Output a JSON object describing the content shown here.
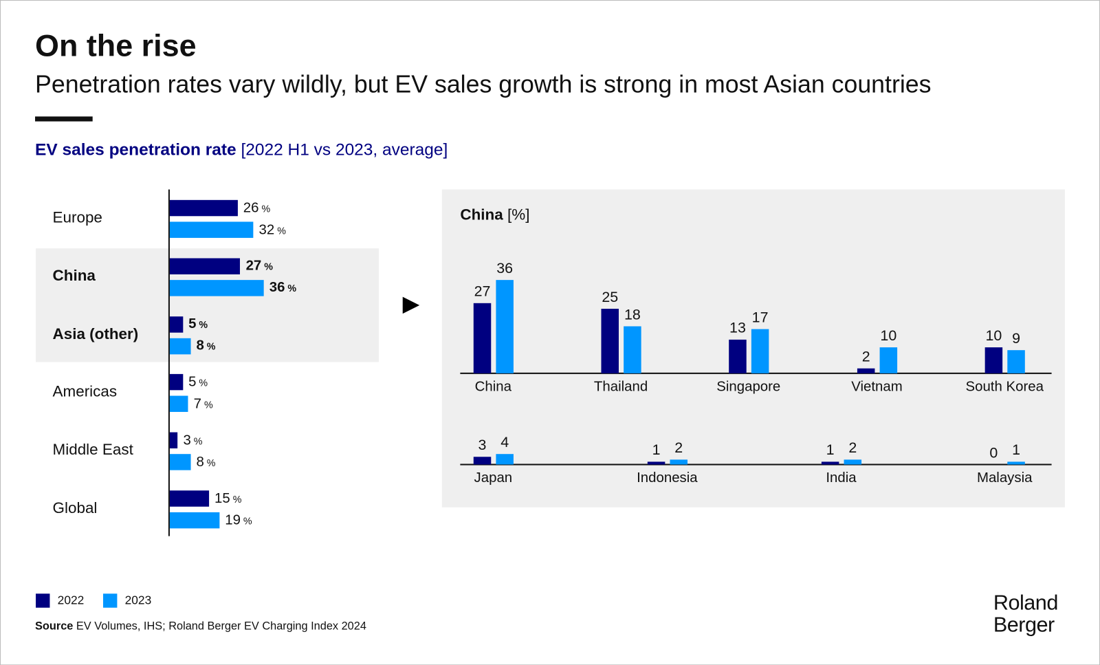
{
  "header": {
    "title": "On the rise",
    "subtitle": "Penetration rates vary wildly, but EV sales growth is strong in most Asian countries"
  },
  "chart_heading": {
    "bold": "EV sales penetration rate",
    "rest": " [2022 H1 vs 2023, average]"
  },
  "colors": {
    "2022": "#000080",
    "2023": "#0096FF",
    "highlight_band": "#EFEFEF"
  },
  "legend": [
    {
      "label": "2022",
      "color": "#000080"
    },
    {
      "label": "2023",
      "color": "#0096FF"
    }
  ],
  "source": {
    "label": "Source",
    "text": " EV Volumes, IHS; Roland Berger EV Charging Index 2024"
  },
  "logo": {
    "line1": "Roland",
    "line2": "Berger"
  },
  "chart_data": [
    {
      "type": "bar",
      "orientation": "horizontal",
      "unit": "%",
      "categories": [
        "Europe",
        "China",
        "Asia (other)",
        "Americas",
        "Middle East",
        "Global"
      ],
      "highlighted": [
        "China",
        "Asia (other)"
      ],
      "series": [
        {
          "name": "2022",
          "values": [
            26,
            27,
            5,
            5,
            3,
            15
          ]
        },
        {
          "name": "2023",
          "values": [
            32,
            36,
            8,
            7,
            8,
            19
          ]
        }
      ]
    },
    {
      "type": "bar",
      "title": "China",
      "unit": "[%]",
      "categories": [
        "China",
        "Thailand",
        "Singapore",
        "Vietnam",
        "South Korea",
        "Japan",
        "Indonesia",
        "India",
        "Malaysia"
      ],
      "series": [
        {
          "name": "2022",
          "values": [
            27,
            25,
            13,
            2,
            10,
            3,
            1,
            1,
            0
          ]
        },
        {
          "name": "2023",
          "values": [
            36,
            18,
            17,
            10,
            9,
            4,
            2,
            2,
            1
          ]
        }
      ]
    }
  ]
}
